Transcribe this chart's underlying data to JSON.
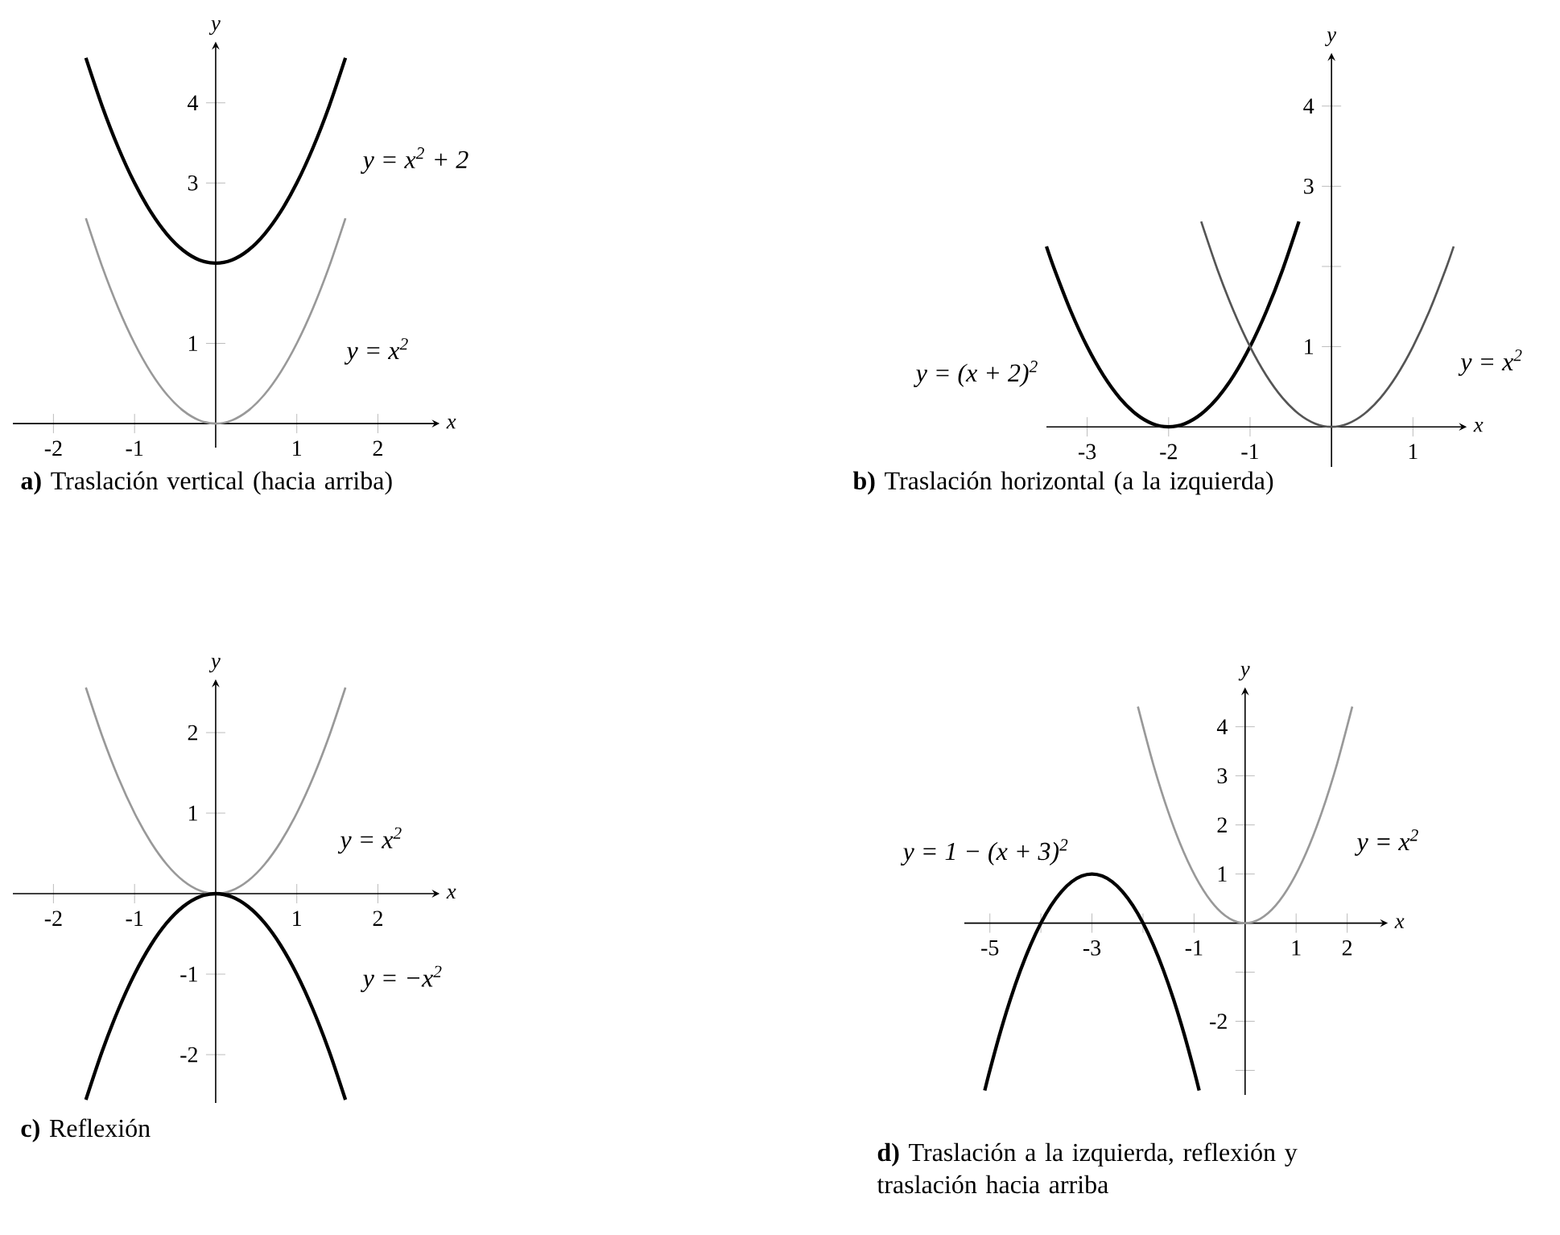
{
  "chart_data": [
    {
      "type": "line",
      "title": "**a)** Traslación vertical (hacia arriba)",
      "xlabel": "x",
      "ylabel": "y",
      "xlim": [
        -2.5,
        2.7
      ],
      "ylim": [
        -0.3,
        4.7
      ],
      "xticks": [
        -2,
        -1,
        1,
        2
      ],
      "yticks": [
        1,
        {
          "value": 2,
          "label": null
        },
        3,
        4
      ],
      "series": [
        {
          "name": "y = x$^{2}$ + 2",
          "color": "#000000",
          "x": [
            -1.6,
            -1.4,
            -1.2,
            -1,
            -0.8,
            -0.6,
            -0.4,
            -0.2,
            0,
            0.2,
            0.4,
            0.6,
            0.8,
            1,
            1.2,
            1.4,
            1.6
          ],
          "values": [
            4.56,
            3.96,
            3.44,
            3,
            2.64,
            2.36,
            2.16,
            2.04,
            2,
            2.04,
            2.16,
            2.36,
            2.64,
            3,
            3.44,
            3.96,
            4.56
          ]
        },
        {
          "name": "y = x$^{2}$",
          "color": "#999999",
          "x": [
            -1.6,
            -1.4,
            -1.2,
            -1,
            -0.8,
            -0.6,
            -0.4,
            -0.2,
            0,
            0.2,
            0.4,
            0.6,
            0.8,
            1,
            1.2,
            1.4,
            1.6
          ],
          "values": [
            2.56,
            1.96,
            1.44,
            1,
            0.64,
            0.36,
            0.16,
            0.04,
            0,
            0.04,
            0.16,
            0.36,
            0.64,
            1,
            1.44,
            1.96,
            2.56
          ]
        }
      ]
    },
    {
      "type": "line",
      "title": "**b)** Traslación horizontal (a la izquierda)",
      "xlabel": "x",
      "ylabel": "y",
      "xlim": [
        -3.5,
        1.6
      ],
      "ylim": [
        -0.5,
        4.6
      ],
      "xticks": [
        -3,
        -2,
        -1,
        1
      ],
      "yticks": [
        1,
        {
          "value": 2,
          "label": null
        },
        3,
        4
      ],
      "series": [
        {
          "name": "y = (x + 2)$^{2}$",
          "color": "#000000",
          "x": [
            -3.5,
            -3.4,
            -3.2,
            -3,
            -2.8,
            -2.6,
            -2.4,
            -2.2,
            -2,
            -1.8,
            -1.6,
            -1.4,
            -1.2,
            -1,
            -0.8,
            -0.6,
            -0.4
          ],
          "values": [
            2.25,
            1.96,
            1.44,
            1,
            0.64,
            0.36,
            0.16,
            0.04,
            0,
            0.04,
            0.16,
            0.36,
            0.64,
            1,
            1.44,
            1.96,
            2.56
          ]
        },
        {
          "name": "y = x$^{2}$",
          "color": "#555555",
          "x": [
            -1.6,
            -1.4,
            -1.2,
            -1,
            -0.8,
            -0.6,
            -0.4,
            -0.2,
            0,
            0.2,
            0.4,
            0.6,
            0.8,
            1,
            1.2,
            1.4,
            1.5
          ],
          "values": [
            2.56,
            1.96,
            1.44,
            1,
            0.64,
            0.36,
            0.16,
            0.04,
            0,
            0.04,
            0.16,
            0.36,
            0.64,
            1,
            1.44,
            1.96,
            2.25
          ]
        }
      ]
    },
    {
      "type": "line",
      "title": "**c)** Reflexión",
      "xlabel": "x",
      "ylabel": "y",
      "xlim": [
        -2.5,
        2.7
      ],
      "ylim": [
        -2.6,
        2.6
      ],
      "xticks": [
        -2,
        -1,
        1,
        2
      ],
      "yticks": [
        -2,
        -1,
        1,
        2
      ],
      "series": [
        {
          "name": "y = x$^{2}$",
          "color": "#999999",
          "x": [
            -1.6,
            -1.4,
            -1.2,
            -1,
            -0.8,
            -0.6,
            -0.4,
            -0.2,
            0,
            0.2,
            0.4,
            0.6,
            0.8,
            1,
            1.2,
            1.4,
            1.6
          ],
          "values": [
            2.56,
            1.96,
            1.44,
            1,
            0.64,
            0.36,
            0.16,
            0.04,
            0,
            0.04,
            0.16,
            0.36,
            0.64,
            1,
            1.44,
            1.96,
            2.56
          ]
        },
        {
          "name": "y = −x$^{2}$",
          "color": "#000000",
          "x": [
            -1.6,
            -1.4,
            -1.2,
            -1,
            -0.8,
            -0.6,
            -0.4,
            -0.2,
            0,
            0.2,
            0.4,
            0.6,
            0.8,
            1,
            1.2,
            1.4,
            1.6
          ],
          "values": [
            -2.56,
            -1.96,
            -1.44,
            -1,
            -0.64,
            -0.36,
            -0.16,
            -0.04,
            0,
            -0.04,
            -0.16,
            -0.36,
            -0.64,
            -1,
            -1.44,
            -1.96,
            -2.56
          ]
        }
      ]
    },
    {
      "type": "line",
      "title": "**d)** Traslación a la izquierda, reflexión y traslación hacia arriba",
      "xlabel": "x",
      "ylabel": "y",
      "xlim": [
        -5.5,
        2.7
      ],
      "ylim": [
        -3.5,
        4.7
      ],
      "xticks": [
        -5,
        {
          "value": -4,
          "label": null
        },
        -3,
        {
          "value": -2,
          "label": null
        },
        -1,
        1,
        2
      ],
      "yticks": [
        {
          "value": -3,
          "label": null
        },
        -2,
        {
          "value": -1,
          "label": null
        },
        1,
        2,
        3,
        4
      ],
      "series": [
        {
          "name": "y = 1 − (x + 3)$^{2}$",
          "color": "#000000",
          "x": [
            -5.1,
            -5,
            -4.8,
            -4.6,
            -4.4,
            -4.2,
            -4,
            -3.8,
            -3.6,
            -3.4,
            -3.2,
            -3,
            -2.8,
            -2.6,
            -2.4,
            -2.2,
            -2,
            -1.8,
            -1.6,
            -1.4,
            -1.2,
            -1,
            -0.9
          ],
          "values": [
            -3.41,
            -3,
            -2.24,
            -1.56,
            -0.96,
            -0.44,
            0,
            0.36,
            0.64,
            0.84,
            0.96,
            1,
            0.96,
            0.84,
            0.64,
            0.36,
            0,
            -0.44,
            -0.96,
            -1.56,
            -2.24,
            -3,
            -3.41
          ]
        },
        {
          "name": "y = x$^{2}$",
          "color": "#999999",
          "x": [
            -2.1,
            -1.8,
            -1.5,
            -1.2,
            -0.9,
            -0.6,
            -0.3,
            0,
            0.3,
            0.6,
            0.9,
            1.2,
            1.5,
            1.8,
            2.1
          ],
          "values": [
            4.41,
            3.24,
            2.25,
            1.44,
            0.81,
            0.36,
            0.09,
            0,
            0.09,
            0.36,
            0.81,
            1.44,
            2.25,
            3.24,
            4.41
          ]
        }
      ]
    }
  ]
}
